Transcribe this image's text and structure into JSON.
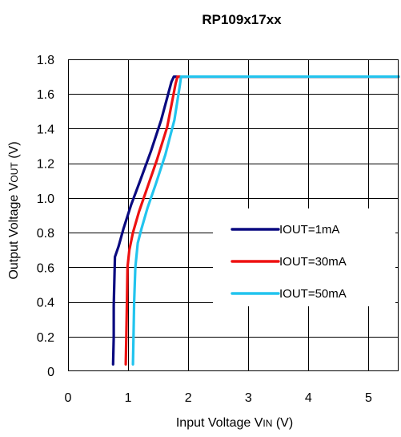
{
  "chart_data": {
    "type": "line",
    "title": "RP109x17xx",
    "xlabel": "Input Voltage VIN (V)",
    "ylabel": "Output Voltage VOUT (V)",
    "xlim": [
      0,
      5.5
    ],
    "ylim": [
      0,
      1.8
    ],
    "x_ticks": [
      "0",
      "1",
      "2",
      "3",
      "4",
      "5"
    ],
    "y_ticks": [
      "0",
      "0.2",
      "0.4",
      "0.6",
      "0.8",
      "1.0",
      "1.2",
      "1.4",
      "1.6",
      "1.8"
    ],
    "grid": true,
    "legend_position": "center-right",
    "series": [
      {
        "name": "IOUT=1mA",
        "color": "#0a0a80",
        "x": [
          0.75,
          0.76,
          0.76,
          0.78,
          0.84,
          0.92,
          1.05,
          1.2,
          1.38,
          1.55,
          1.72,
          1.76,
          5.5
        ],
        "y": [
          0.04,
          0.2,
          0.38,
          0.66,
          0.72,
          0.82,
          0.96,
          1.1,
          1.27,
          1.45,
          1.67,
          1.7,
          1.7
        ]
      },
      {
        "name": "IOUT=30mA",
        "color": "#ee1111",
        "x": [
          0.96,
          0.97,
          0.98,
          0.99,
          1.02,
          1.08,
          1.18,
          1.32,
          1.48,
          1.65,
          1.79,
          1.82,
          5.5
        ],
        "y": [
          0.04,
          0.2,
          0.4,
          0.6,
          0.7,
          0.8,
          0.92,
          1.06,
          1.22,
          1.41,
          1.66,
          1.7,
          1.7
        ]
      },
      {
        "name": "IOUT=50mA",
        "color": "#22c4ee",
        "x": [
          1.08,
          1.09,
          1.1,
          1.12,
          1.16,
          1.22,
          1.32,
          1.46,
          1.62,
          1.77,
          1.86,
          1.88,
          5.5
        ],
        "y": [
          0.04,
          0.2,
          0.4,
          0.6,
          0.74,
          0.82,
          0.94,
          1.08,
          1.25,
          1.45,
          1.65,
          1.7,
          1.7
        ]
      }
    ]
  }
}
